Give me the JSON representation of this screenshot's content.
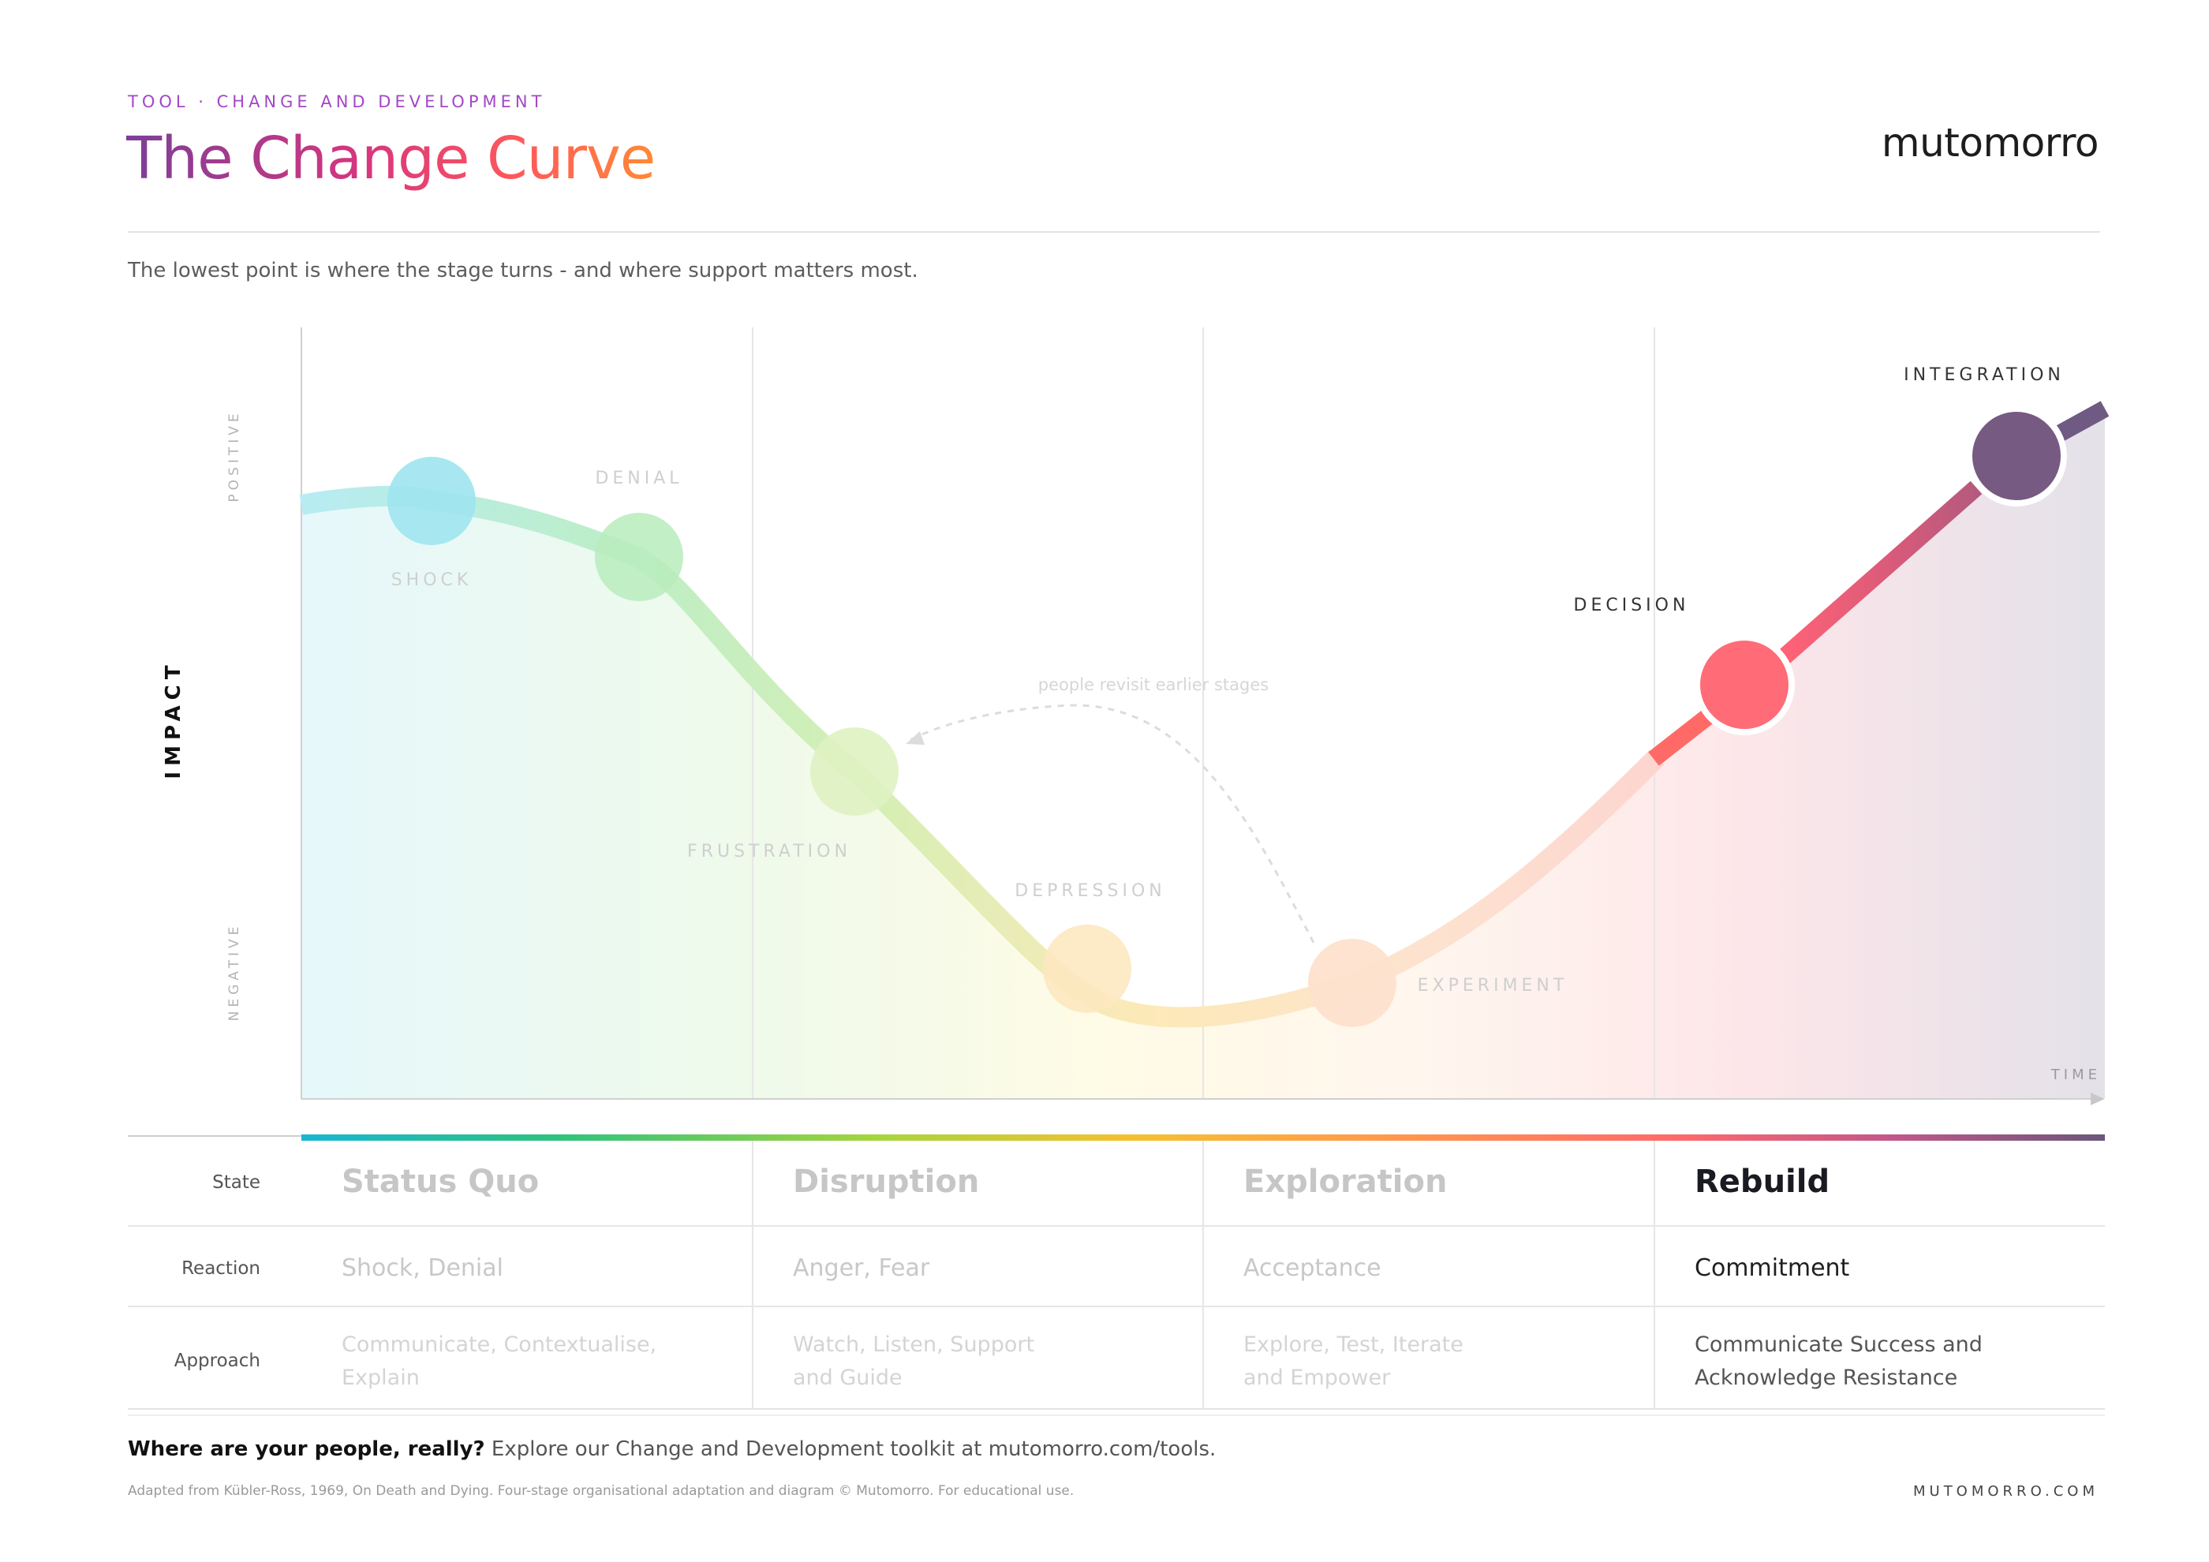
{
  "header": {
    "kicker": "TOOL · CHANGE AND DEVELOPMENT",
    "title": "The Change Curve",
    "brand": "mutomorro",
    "subtitle": "The lowest point is where the stage turns - and where support matters most."
  },
  "axes": {
    "y_label": "IMPACT",
    "y_top": "POSITIVE",
    "y_bottom": "NEGATIVE",
    "x_label": "TIME"
  },
  "curve": {
    "points": [
      {
        "name": "SHOCK",
        "color": "#7fdbe9"
      },
      {
        "name": "DENIAL",
        "color": "#a7e8a8"
      },
      {
        "name": "FRUSTRATION",
        "color": "#d2eeaa"
      },
      {
        "name": "DEPRESSION",
        "color": "#fde2a8"
      },
      {
        "name": "EXPERIMENT",
        "color": "#fdd9bc"
      },
      {
        "name": "DECISION",
        "color": "#ff6b77"
      },
      {
        "name": "INTEGRATION",
        "color": "#765a82"
      }
    ],
    "annotation": "people revisit earlier stages"
  },
  "colors": {
    "stage_bar": [
      "#19b6d2",
      "#2ec27e",
      "#a7d53c",
      "#f5c030",
      "#ff9a4d",
      "#ff6a6a",
      "#c2588a",
      "#6c567b"
    ]
  },
  "table": {
    "row_labels": {
      "state": "State",
      "reaction": "Reaction",
      "approach": "Approach"
    },
    "columns": [
      {
        "state": "Status Quo",
        "reaction": "Shock, Denial",
        "approach": [
          "Communicate, Contextualise,",
          "Explain"
        ],
        "active": false
      },
      {
        "state": "Disruption",
        "reaction": "Anger, Fear",
        "approach": [
          "Watch, Listen, Support",
          "and Guide"
        ],
        "active": false
      },
      {
        "state": "Exploration",
        "reaction": "Acceptance",
        "approach": [
          "Explore, Test, Iterate",
          "and Empower"
        ],
        "active": false
      },
      {
        "state": "Rebuild",
        "reaction": "Commitment",
        "approach": [
          "Communicate Success and",
          "Acknowledge Resistance"
        ],
        "active": true
      }
    ]
  },
  "footer": {
    "cta_bold": "Where are your people, really?",
    "cta_text": " Explore our Change and Development toolkit at mutomorro.com/tools.",
    "credit": "Adapted from Kübler-Ross, 1969, On Death and Dying. Four-stage organisational adaptation and diagram © Mutomorro. For educational use.",
    "brand": "MUTOMORRO.COM"
  }
}
